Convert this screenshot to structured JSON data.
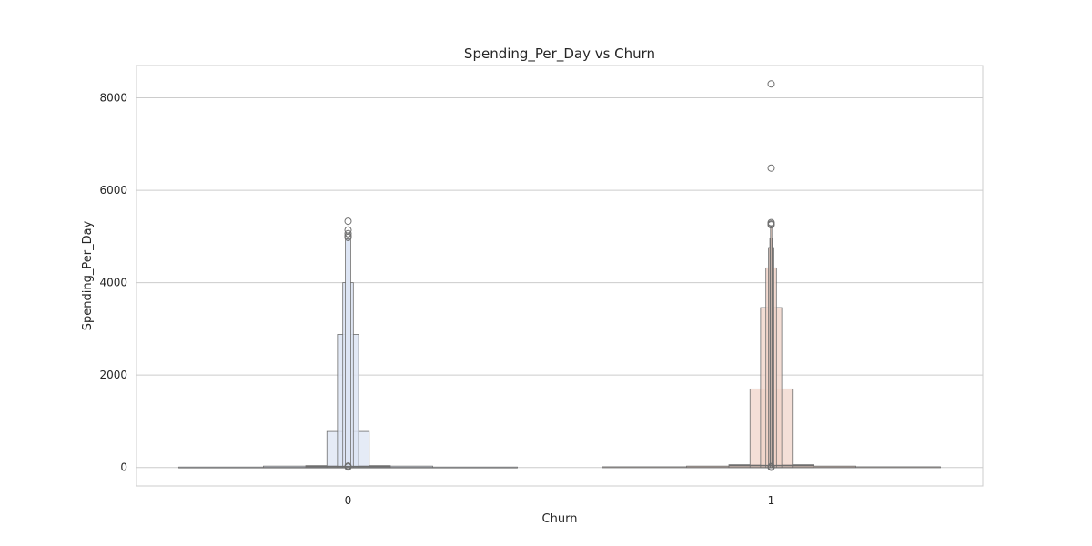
{
  "chart_data": {
    "type": "boxen",
    "title": "Spending_Per_Day vs Churn",
    "xlabel": "Churn",
    "ylabel": "Spending_Per_Day",
    "categories": [
      "0",
      "1"
    ],
    "ylim": [
      -400,
      8700
    ],
    "yticks": [
      0,
      2000,
      4000,
      6000,
      8000
    ],
    "grid": true,
    "colors": {
      "0": "#dde5f4",
      "1": "#f0d3c7",
      "edge": "#6e6e6e",
      "grid": "#cccccc"
    },
    "series": [
      {
        "category": "0",
        "levels": [
          {
            "lo": 0,
            "hi": 10
          },
          {
            "lo": 0,
            "hi": 30
          },
          {
            "lo": 0,
            "hi": 40
          },
          {
            "lo": 0,
            "hi": 780
          },
          {
            "lo": 0,
            "hi": 2880
          },
          {
            "lo": 0,
            "hi": 4000
          },
          {
            "lo": 0,
            "hi": 4960
          }
        ],
        "median": 20,
        "outliers": [
          5330,
          5140,
          5060,
          5010,
          4980,
          30,
          10
        ]
      },
      {
        "category": "1",
        "levels": [
          {
            "lo": 0,
            "hi": 15
          },
          {
            "lo": 0,
            "hi": 30
          },
          {
            "lo": 0,
            "hi": 60
          },
          {
            "lo": 0,
            "hi": 1700
          },
          {
            "lo": 0,
            "hi": 3460
          },
          {
            "lo": 0,
            "hi": 4320
          },
          {
            "lo": 0,
            "hi": 4760
          },
          {
            "lo": 0,
            "hi": 4960
          },
          {
            "lo": 0,
            "hi": 5220
          }
        ],
        "median": 40,
        "outliers": [
          8300,
          6480,
          5300,
          5270,
          5250,
          20,
          5
        ]
      }
    ]
  }
}
